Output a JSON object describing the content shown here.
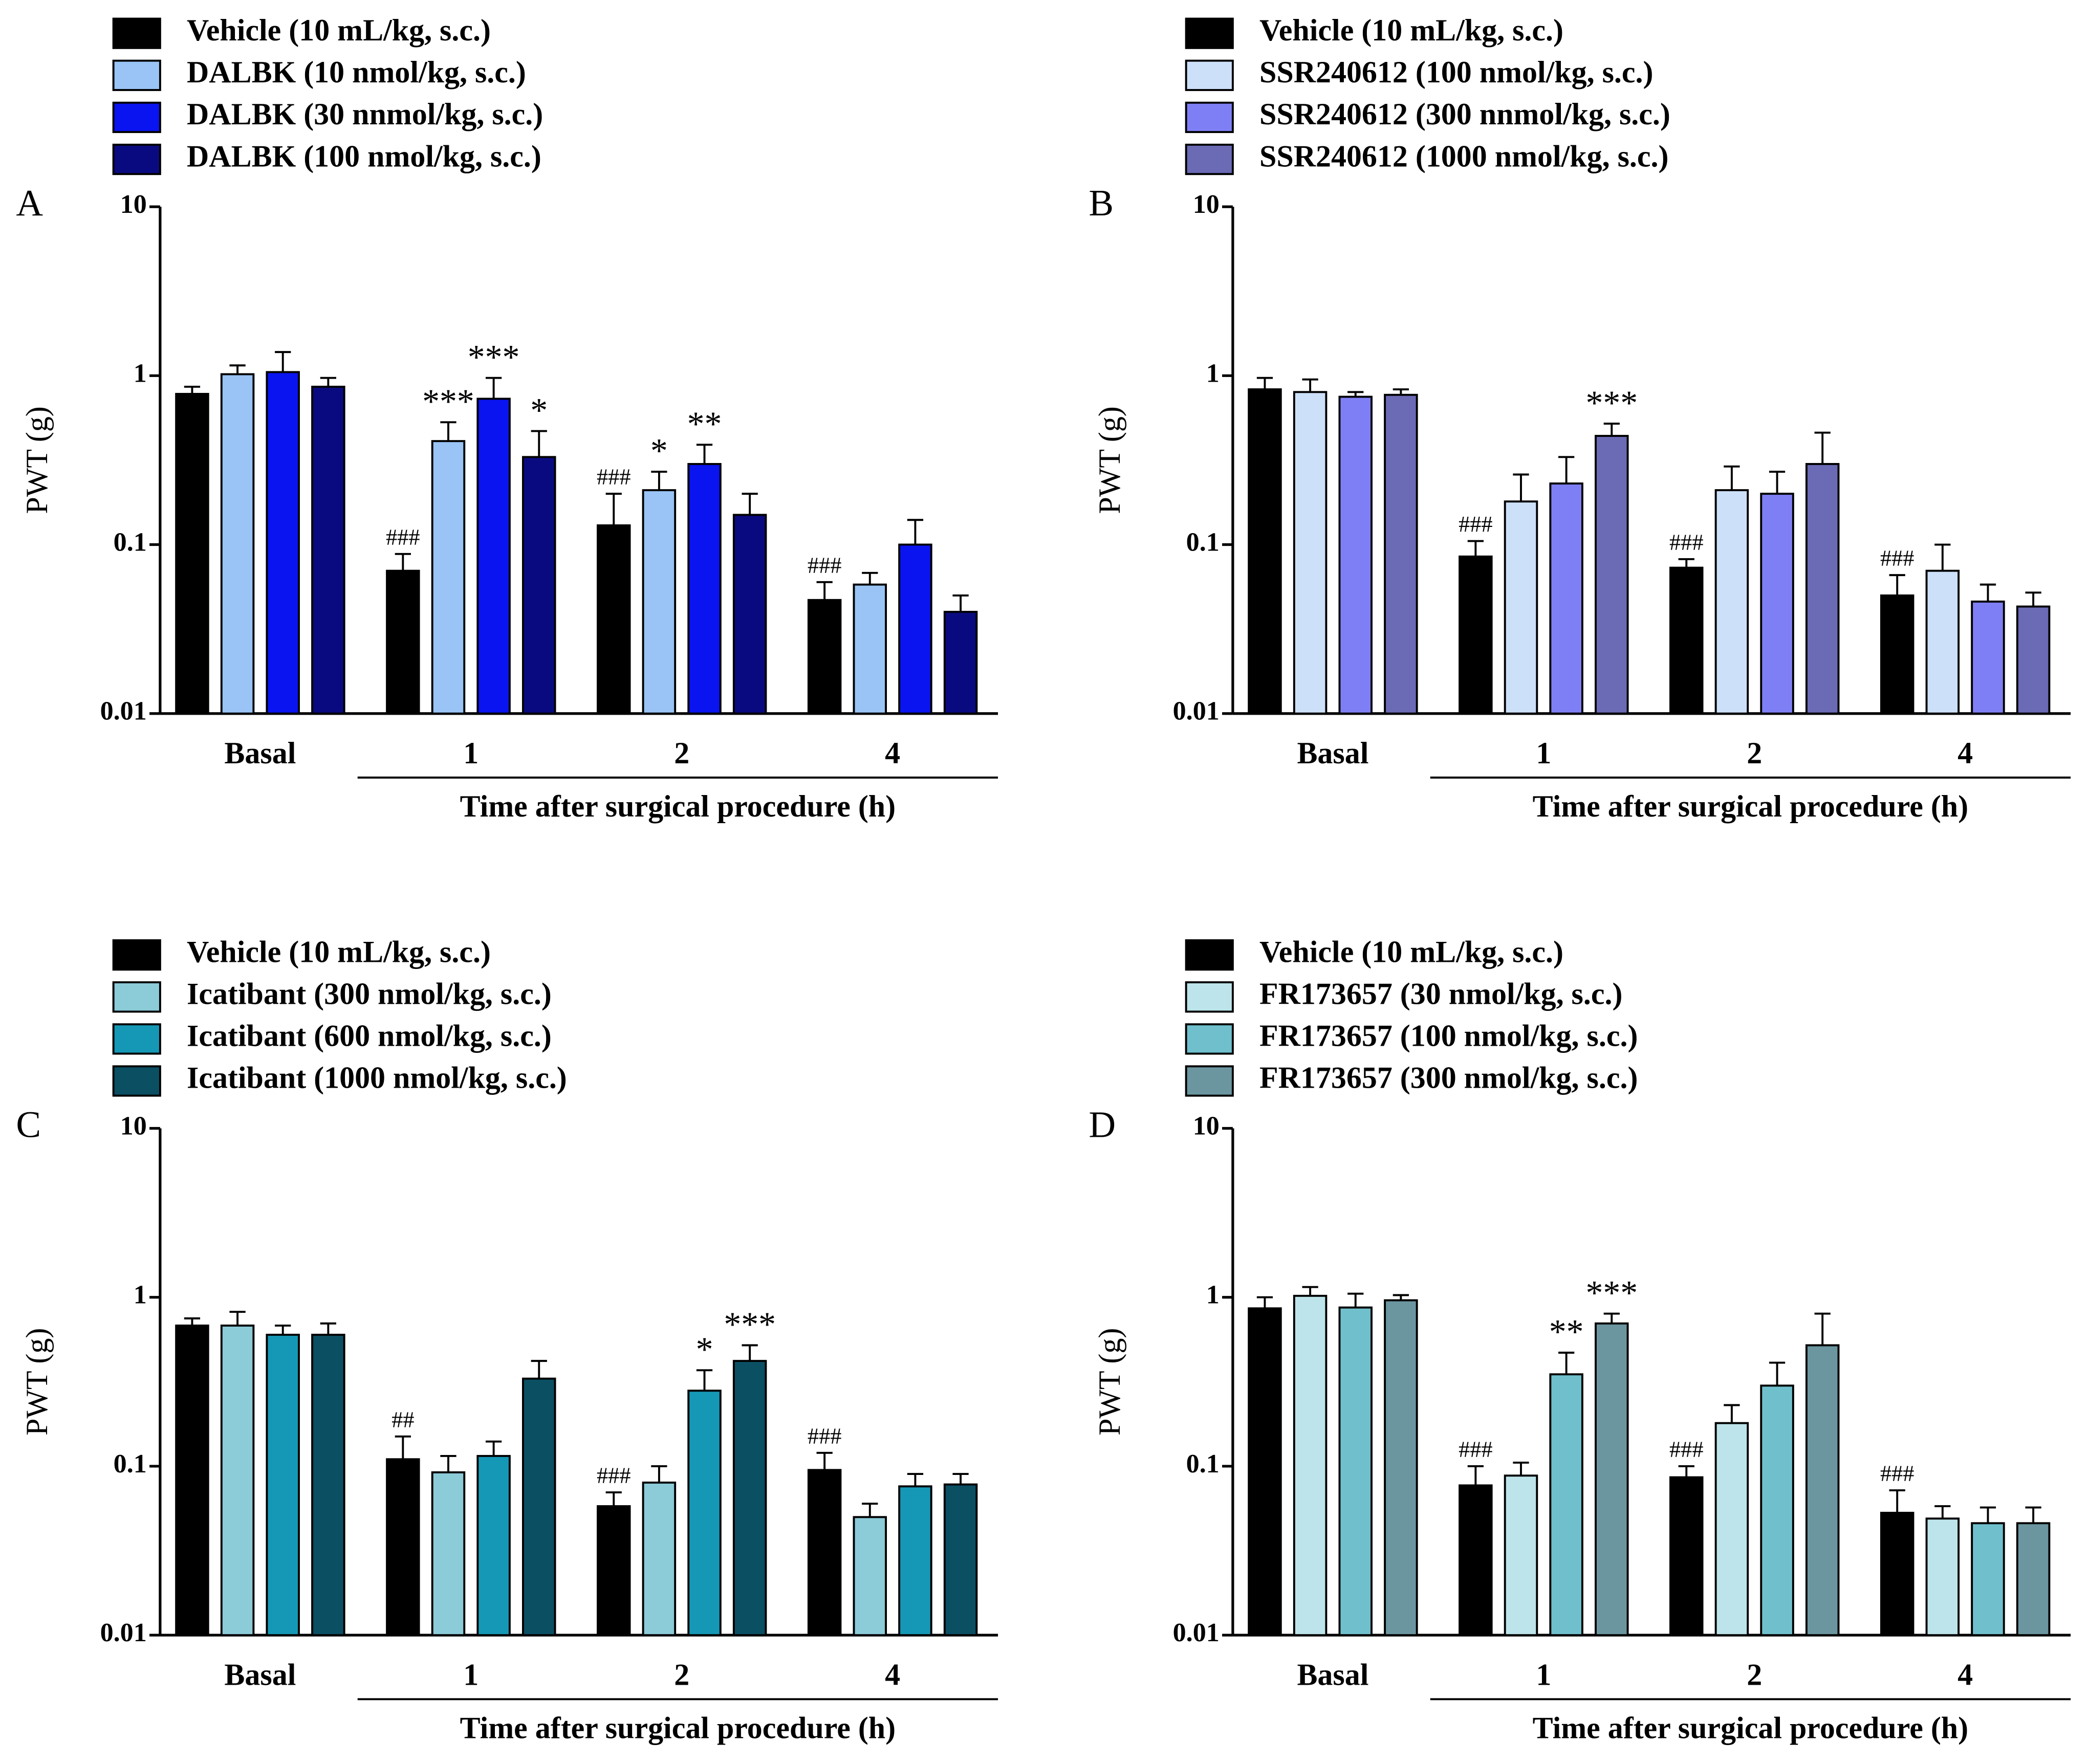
{
  "chart_data": [
    {
      "type": "bar",
      "panel": "A",
      "y_label": "PWT (g)",
      "x_label": "Time after surgical procedure (h)",
      "log_y": true,
      "ylim": [
        0.01,
        10
      ],
      "yticks": [
        0.01,
        0.1,
        1,
        10
      ],
      "categories": [
        "Basal",
        "1",
        "2",
        "4"
      ],
      "series": [
        {
          "name": "Vehicle (10 mL/kg, s.c.)",
          "color": "#000000",
          "values": [
            0.78,
            0.07,
            0.13,
            0.047
          ],
          "errors": [
            0.08,
            0.018,
            0.07,
            0.013
          ],
          "significance": [
            null,
            "###",
            "###",
            "###"
          ]
        },
        {
          "name": "DALBK (10 nmol/kg, s.c.)",
          "color": "#99c4f5",
          "values": [
            1.02,
            0.41,
            0.21,
            0.058
          ],
          "errors": [
            0.13,
            0.12,
            0.06,
            0.01
          ],
          "significance": [
            null,
            "***",
            "*",
            null
          ]
        },
        {
          "name": "DALBK (30 nnmol/kg, s.c.)",
          "color": "#0a14f0",
          "values": [
            1.05,
            0.73,
            0.3,
            0.1
          ],
          "errors": [
            0.33,
            0.24,
            0.09,
            0.04
          ],
          "significance": [
            null,
            "***",
            "**",
            null
          ]
        },
        {
          "name": "DALBK (100 nmol/kg, s.c.)",
          "color": "#0a0a80",
          "values": [
            0.86,
            0.33,
            0.15,
            0.04
          ],
          "errors": [
            0.11,
            0.14,
            0.05,
            0.01
          ],
          "significance": [
            null,
            "*",
            null,
            null
          ]
        }
      ]
    },
    {
      "type": "bar",
      "panel": "B",
      "y_label": "PWT (g)",
      "x_label": "Time after surgical procedure (h)",
      "log_y": true,
      "ylim": [
        0.01,
        10
      ],
      "yticks": [
        0.01,
        0.1,
        1,
        10
      ],
      "categories": [
        "Basal",
        "1",
        "2",
        "4"
      ],
      "series": [
        {
          "name": "Vehicle (10 mL/kg, s.c.)",
          "color": "#000000",
          "values": [
            0.83,
            0.085,
            0.073,
            0.05
          ],
          "errors": [
            0.14,
            0.02,
            0.009,
            0.016
          ],
          "significance": [
            null,
            "###",
            "###",
            "###"
          ]
        },
        {
          "name": "SSR240612 (100 nmol/kg, s.c.)",
          "color": "#cde0fa",
          "values": [
            0.8,
            0.18,
            0.21,
            0.07
          ],
          "errors": [
            0.15,
            0.08,
            0.08,
            0.03
          ],
          "significance": [
            null,
            null,
            null,
            null
          ]
        },
        {
          "name": "SSR240612 (300 nnmol/kg, s.c.)",
          "color": "#7f7ff5",
          "values": [
            0.75,
            0.23,
            0.2,
            0.046
          ],
          "errors": [
            0.05,
            0.1,
            0.07,
            0.012
          ],
          "significance": [
            null,
            null,
            null,
            null
          ]
        },
        {
          "name": "SSR240612 (1000 nmol/kg, s.c.)",
          "color": "#6a6ab5",
          "values": [
            0.77,
            0.44,
            0.3,
            0.043
          ],
          "errors": [
            0.06,
            0.08,
            0.16,
            0.009
          ],
          "significance": [
            null,
            "***",
            null,
            null
          ]
        }
      ]
    },
    {
      "type": "bar",
      "panel": "C",
      "y_label": "PWT (g)",
      "x_label": "Time after surgical procedure (h)",
      "log_y": true,
      "ylim": [
        0.01,
        10
      ],
      "yticks": [
        0.01,
        0.1,
        1,
        10
      ],
      "categories": [
        "Basal",
        "1",
        "2",
        "4"
      ],
      "series": [
        {
          "name": "Vehicle (10 mL/kg, s.c.)",
          "color": "#000000",
          "values": [
            0.68,
            0.11,
            0.058,
            0.095
          ],
          "errors": [
            0.07,
            0.04,
            0.012,
            0.025
          ],
          "significance": [
            null,
            "##",
            "###",
            "###"
          ]
        },
        {
          "name": "Icatibant (300 nmol/kg, s.c.)",
          "color": "#8ccbd8",
          "values": [
            0.68,
            0.092,
            0.08,
            0.05
          ],
          "errors": [
            0.14,
            0.023,
            0.02,
            0.01
          ],
          "significance": [
            null,
            null,
            null,
            null
          ]
        },
        {
          "name": "Icatibant (600 nmol/kg, s.c.)",
          "color": "#1598b5",
          "values": [
            0.6,
            0.115,
            0.28,
            0.076
          ],
          "errors": [
            0.08,
            0.025,
            0.09,
            0.014
          ],
          "significance": [
            null,
            null,
            "*",
            null
          ]
        },
        {
          "name": "Icatibant (1000 nmol/kg, s.c.)",
          "color": "#0b4f63",
          "values": [
            0.6,
            0.33,
            0.42,
            0.078
          ],
          "errors": [
            0.1,
            0.09,
            0.1,
            0.012
          ],
          "significance": [
            null,
            null,
            "***",
            null
          ]
        }
      ]
    },
    {
      "type": "bar",
      "panel": "D",
      "y_label": "PWT (g)",
      "x_label": "Time after surgical procedure (h)",
      "log_y": true,
      "ylim": [
        0.01,
        10
      ],
      "yticks": [
        0.01,
        0.1,
        1,
        10
      ],
      "categories": [
        "Basal",
        "1",
        "2",
        "4"
      ],
      "series": [
        {
          "name": "Vehicle (10 mL/kg, s.c.)",
          "color": "#000000",
          "values": [
            0.86,
            0.077,
            0.086,
            0.053
          ],
          "errors": [
            0.14,
            0.023,
            0.014,
            0.019
          ],
          "significance": [
            null,
            "###",
            "###",
            "###"
          ]
        },
        {
          "name": "FR173657 (30 nmol/kg, s.c.)",
          "color": "#bde4ea",
          "values": [
            1.02,
            0.088,
            0.18,
            0.049
          ],
          "errors": [
            0.13,
            0.017,
            0.05,
            0.009
          ],
          "significance": [
            null,
            null,
            null,
            null
          ]
        },
        {
          "name": "FR173657 (100 nmol/kg, s.c.)",
          "color": "#6fc0cc",
          "values": [
            0.87,
            0.35,
            0.3,
            0.046
          ],
          "errors": [
            0.18,
            0.12,
            0.11,
            0.011
          ],
          "significance": [
            null,
            "**",
            null,
            null
          ]
        },
        {
          "name": "FR173657 (300 nmol/kg, s.c.)",
          "color": "#6b96a0",
          "values": [
            0.96,
            0.7,
            0.52,
            0.046
          ],
          "errors": [
            0.07,
            0.1,
            0.28,
            0.011
          ],
          "significance": [
            null,
            "***",
            null,
            null
          ]
        }
      ]
    }
  ]
}
